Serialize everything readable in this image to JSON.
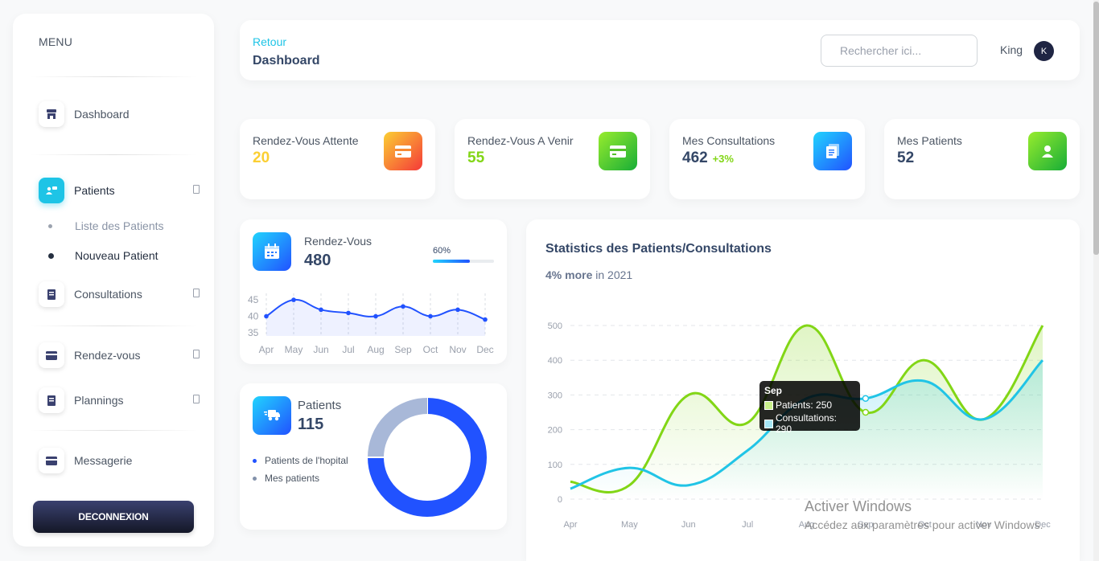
{
  "sidebar": {
    "menu_title": "MENU",
    "items": [
      {
        "label": "Dashboard",
        "icon": "store-icon"
      },
      {
        "label": "Patients",
        "icon": "users-icon"
      },
      {
        "label": "Consultations",
        "icon": "book-icon"
      },
      {
        "label": "Rendez-vous",
        "icon": "card-icon"
      },
      {
        "label": "Plannings",
        "icon": "book-icon"
      },
      {
        "label": "Messagerie",
        "icon": "card-icon"
      }
    ],
    "patients_sub": [
      "Liste des Patients",
      "Nouveau Patient"
    ],
    "logout": "DECONNEXION"
  },
  "header": {
    "back": "Retour",
    "title": "Dashboard",
    "search_placeholder": "Rechercher ici...",
    "user": "King",
    "avatar_initial": "K"
  },
  "stats": [
    {
      "title": "Rendez-Vous Attente",
      "value": "20",
      "value_color": "#fbcf33"
    },
    {
      "title": "Rendez-Vous A Venir",
      "value": "55",
      "value_color": "#82d616"
    },
    {
      "title": "Mes Consultations",
      "value": "462",
      "delta": "+3%",
      "delta_color": "#82d616"
    },
    {
      "title": "Mes Patients",
      "value": "52"
    }
  ],
  "rdv_card": {
    "label": "Rendez-Vous",
    "value": "480",
    "progress_text": "60%",
    "progress": 0.6,
    "chart_data": {
      "type": "area",
      "categories": [
        "Apr",
        "May",
        "Jun",
        "Jul",
        "Aug",
        "Sep",
        "Oct",
        "Nov",
        "Dec"
      ],
      "values": [
        40,
        45,
        42,
        41,
        40,
        43,
        40,
        42,
        39
      ],
      "yticks": [
        45,
        40,
        35
      ],
      "ylim": [
        34,
        46
      ]
    }
  },
  "patients_card": {
    "label": "Patients",
    "value": "115",
    "legend": [
      "Patients de l'hopital",
      "Mes patients"
    ],
    "legend_colors": [
      "#2152ff",
      "#8392ab"
    ],
    "chart_data": {
      "type": "pie",
      "labels": [
        "Patients de l'hopital",
        "Mes patients"
      ],
      "values": [
        75,
        25
      ],
      "colors": [
        "#2152ff",
        "#a8b8d8"
      ]
    }
  },
  "stats_chart": {
    "title": "Statistics des Patients/Consultations",
    "sub_bold": "4% more",
    "sub_rest": " in 2021",
    "tooltip_title": "Sep",
    "tooltip_lines": [
      "Patients: 250",
      "Consultations: 290"
    ],
    "chart_data": {
      "type": "line",
      "categories": [
        "Apr",
        "May",
        "Jun",
        "Jul",
        "Aug",
        "Sep",
        "Oct",
        "Nov",
        "Dec"
      ],
      "yticks": [
        500,
        400,
        300,
        200,
        100,
        0
      ],
      "ylim": [
        0,
        500
      ],
      "series": [
        {
          "name": "Patients",
          "color": "#82d616",
          "values": [
            50,
            40,
            300,
            220,
            500,
            250,
            400,
            230,
            500
          ]
        },
        {
          "name": "Consultations",
          "color": "#21c4e6",
          "values": [
            30,
            90,
            40,
            140,
            290,
            290,
            340,
            230,
            400
          ]
        }
      ]
    }
  },
  "watermark": {
    "line1": "Activer Windows",
    "line2": "Accédez aux paramètres pour activer Windows."
  }
}
